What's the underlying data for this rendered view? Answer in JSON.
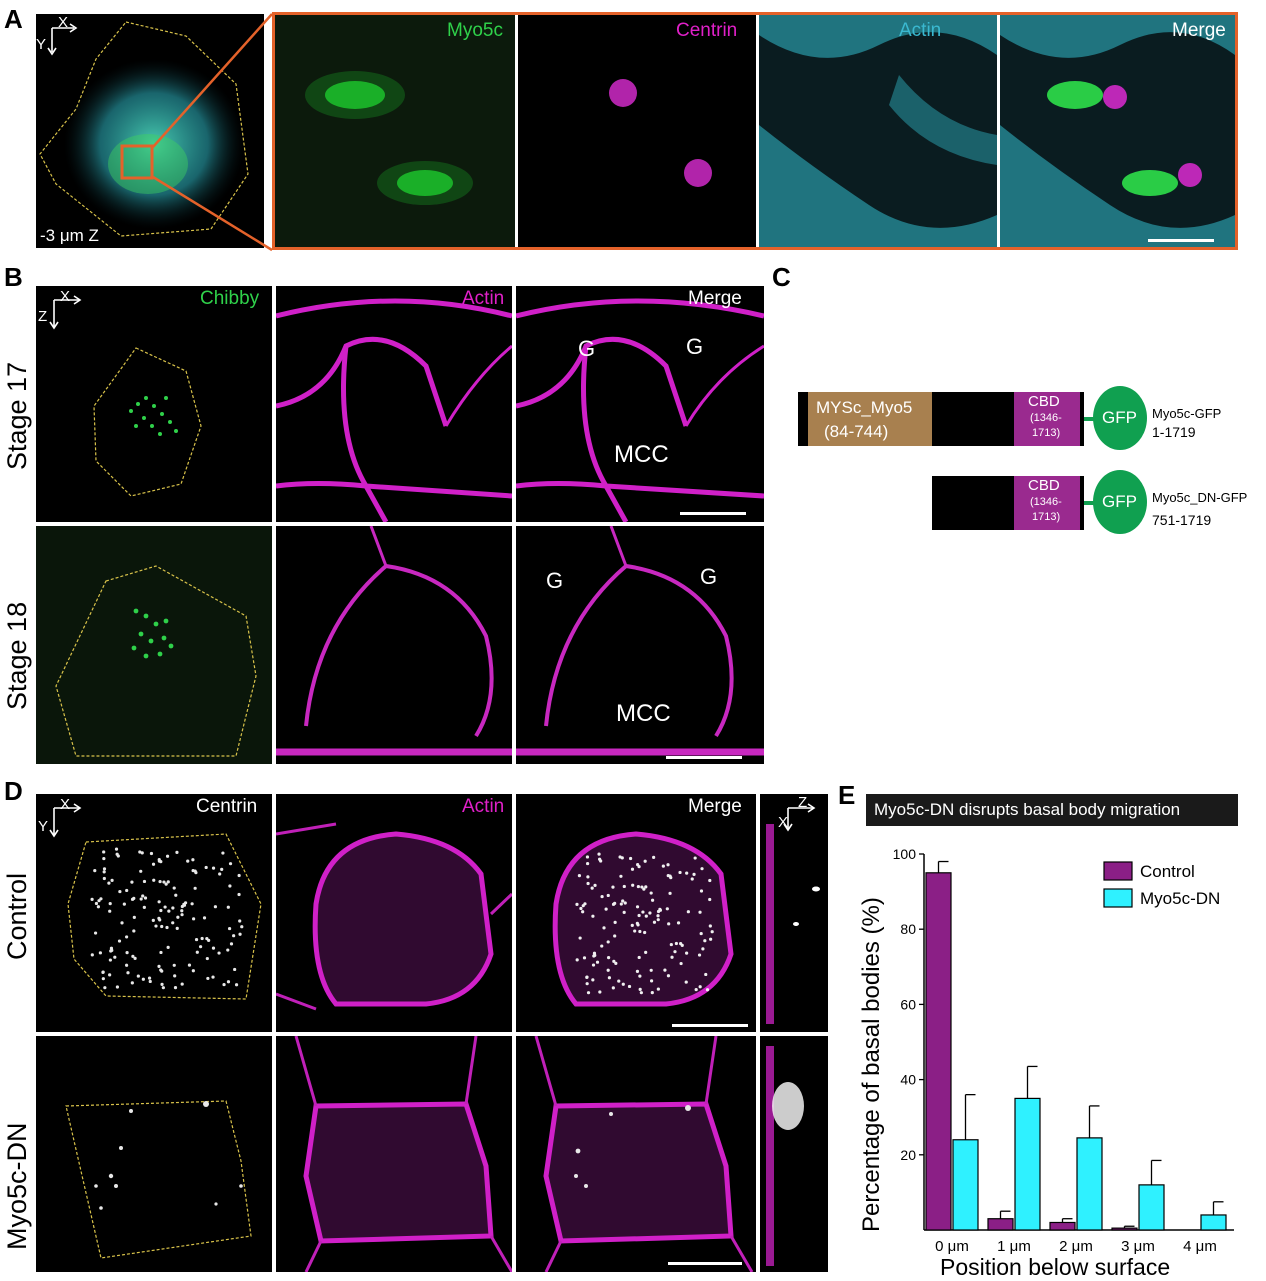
{
  "colors": {
    "green": "#2fd14a",
    "magenta": "#e020c8",
    "cyan": "#3ab8d0",
    "orange": "#e4622a",
    "purple": "#8b1f86",
    "cyan_bar": "#2ff1ff",
    "yellow_outline": "#d8c24a",
    "brown_domain": "#a8804f",
    "cbd": "#9a2a8f",
    "gfp": "#10a050"
  },
  "panel_a": {
    "letter": "A",
    "axes": {
      "x": "X",
      "y": "Y"
    },
    "z_label": "-3 μm Z",
    "channels": [
      "Myo5c",
      "Centrin",
      "Actin",
      "Merge"
    ]
  },
  "panel_b": {
    "letter": "B",
    "axes": {
      "x": "X",
      "z": "Z"
    },
    "channels": [
      "Chibby",
      "Actin",
      "Merge"
    ],
    "rows": [
      "Stage 17",
      "Stage 18"
    ],
    "labels": {
      "g": "G",
      "mcc": "MCC"
    }
  },
  "panel_c": {
    "letter": "C",
    "constructs": [
      {
        "domain": "MYSc_Myo5",
        "domain_range": "(84-744)",
        "cbd": "CBD",
        "cbd_range_a": "(1346-",
        "cbd_range_b": "1713)",
        "gfp": "GFP",
        "name": "Myo5c-GFP",
        "range": "1-1719"
      },
      {
        "cbd": "CBD",
        "cbd_range_a": "(1346-",
        "cbd_range_b": "1713)",
        "gfp": "GFP",
        "name": "Myo5c_DN-GFP",
        "range": "751-1719"
      }
    ]
  },
  "panel_d": {
    "letter": "D",
    "axes": {
      "x": "X",
      "y": "Y"
    },
    "side_axes": {
      "x": "X",
      "z": "Z"
    },
    "channels": [
      "Centrin",
      "Actin",
      "Merge"
    ],
    "rows": [
      "Control",
      "Myo5c-DN"
    ]
  },
  "panel_e": {
    "letter": "E"
  },
  "chart_data": {
    "type": "bar",
    "title": "Myo5c-DN disrupts basal body migration",
    "xlabel": "Position below surface",
    "ylabel": "Percentage of  basal bodies (%)",
    "categories": [
      "0 μm",
      "1 μm",
      "2 μm",
      "3 μm",
      "4 μm"
    ],
    "ylim": [
      0,
      100
    ],
    "yticks": [
      20,
      40,
      60,
      80,
      100
    ],
    "legend_position": "top-right",
    "series": [
      {
        "name": "Control",
        "color": "#8b1f86",
        "values": [
          95,
          3,
          2,
          0.5,
          0
        ],
        "errors": [
          3,
          2,
          1,
          0.5,
          0
        ]
      },
      {
        "name": "Myo5c-DN",
        "color": "#2ff1ff",
        "values": [
          24,
          35,
          24.5,
          12,
          4
        ],
        "errors": [
          12,
          8.5,
          8.5,
          6.5,
          3.5
        ]
      }
    ]
  }
}
